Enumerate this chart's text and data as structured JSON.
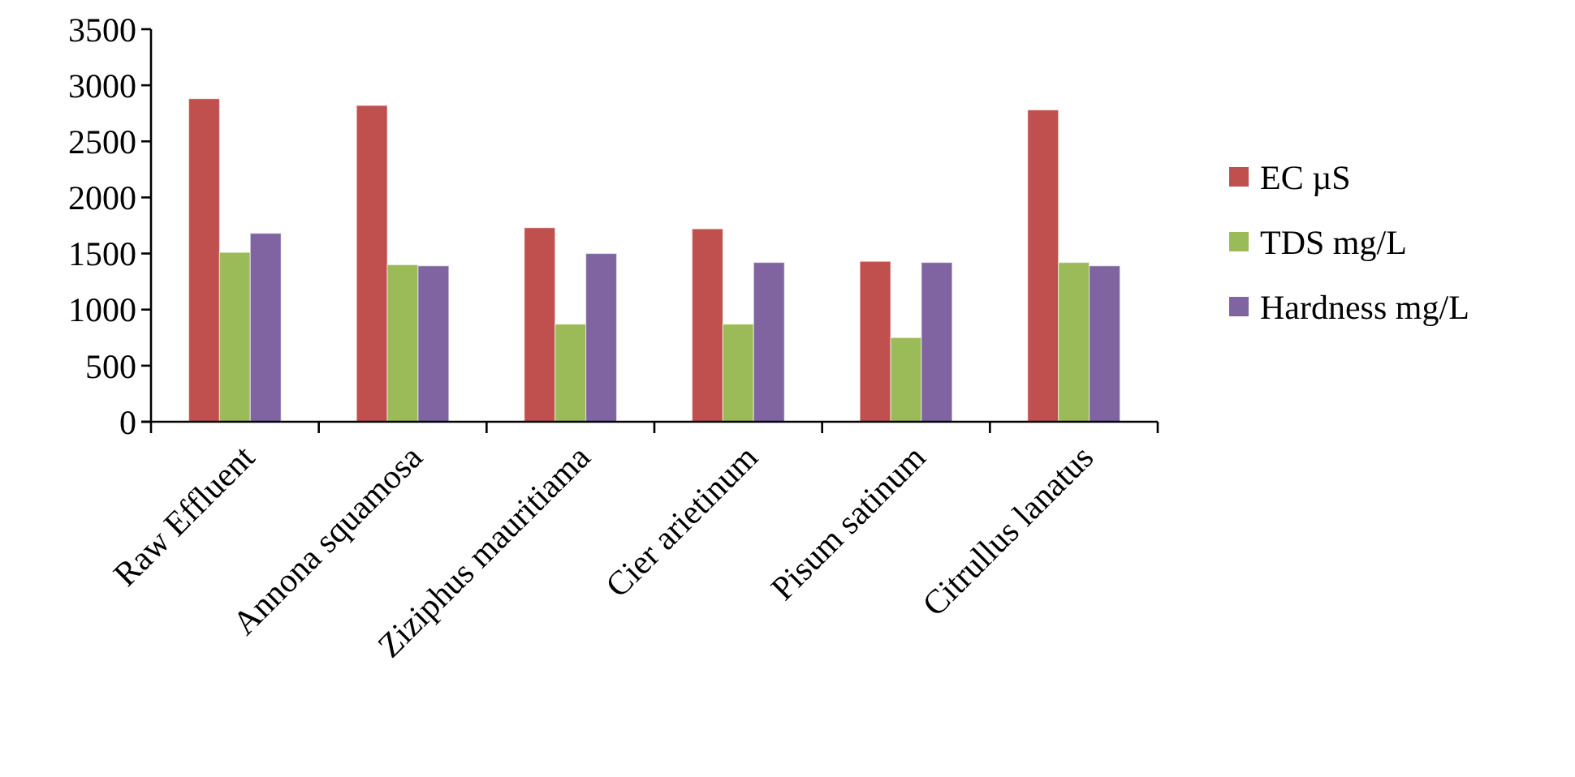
{
  "chart_data": {
    "type": "bar",
    "categories": [
      "Raw Effluent",
      "Annona squamosa",
      "Ziziphus mauritiama",
      "Cier arietinum",
      "Pisum satinum",
      "Citrullus lanatus"
    ],
    "series": [
      {
        "name": "EC µS",
        "color": "#c0504d",
        "values": [
          2880,
          2820,
          1730,
          1720,
          1430,
          2780
        ]
      },
      {
        "name": "TDS mg/L",
        "color": "#9bbb59",
        "values": [
          1510,
          1400,
          870,
          870,
          750,
          1420
        ]
      },
      {
        "name": "Hardness mg/L",
        "color": "#8064a2",
        "values": [
          1680,
          1390,
          1500,
          1420,
          1420,
          1390
        ]
      }
    ],
    "ylim": [
      0,
      3500
    ],
    "yticks": [
      0,
      500,
      1000,
      1500,
      2000,
      2500,
      3000,
      3500
    ],
    "legend": "right"
  }
}
